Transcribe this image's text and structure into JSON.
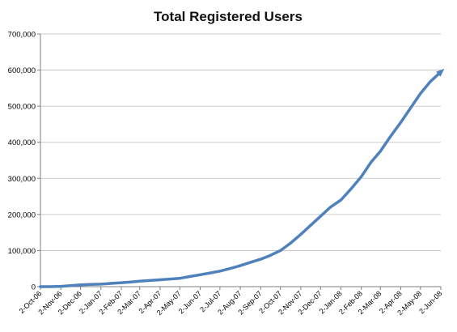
{
  "chart_data": {
    "type": "line",
    "title": "Total Registered Users",
    "xlabel": "",
    "ylabel": "",
    "ylim": [
      0,
      700000
    ],
    "yticks": [
      0,
      100000,
      200000,
      300000,
      400000,
      500000,
      600000,
      700000
    ],
    "ytick_labels": [
      "0",
      "100,000",
      "200,000",
      "300,000",
      "400,000",
      "500,000",
      "600,000",
      "700,000"
    ],
    "grid": true,
    "legend": "none",
    "x_tick_labels": [
      "2-Oct-06",
      "2-Nov-06",
      "2-Dec-06",
      "2-Jan-07",
      "2-Feb-07",
      "2-Mar-07",
      "2-Apr-07",
      "2-May-07",
      "2-Jun-07",
      "2-Jul-07",
      "2-Aug-07",
      "2-Sep-07",
      "2-Oct-07",
      "2-Nov-07",
      "2-Dec-07",
      "2-Jan-08",
      "2-Feb-08",
      "2-Mar-08",
      "2-Apr-08",
      "2-May-08",
      "2-Jun-08"
    ],
    "line_color": "#4F81BD",
    "series": [
      {
        "x": [
          "2-Oct-06",
          "17-Oct-06",
          "2-Nov-06",
          "17-Nov-06",
          "2-Dec-06",
          "17-Dec-06",
          "2-Jan-07",
          "17-Jan-07",
          "2-Feb-07",
          "17-Feb-07",
          "2-Mar-07",
          "17-Mar-07",
          "2-Apr-07",
          "17-Apr-07",
          "2-May-07",
          "17-May-07",
          "2-Jun-07",
          "17-Jun-07",
          "2-Jul-07",
          "17-Jul-07",
          "2-Aug-07",
          "17-Aug-07",
          "2-Sep-07",
          "17-Sep-07",
          "2-Oct-07",
          "17-Oct-07",
          "2-Nov-07",
          "17-Nov-07",
          "2-Dec-07",
          "17-Dec-07",
          "2-Jan-08",
          "17-Jan-08",
          "2-Feb-08",
          "17-Feb-08",
          "2-Mar-08",
          "17-Mar-08",
          "2-Apr-08",
          "17-Apr-08",
          "2-May-08",
          "17-May-08",
          "2-Jun-08"
        ],
        "values": [
          0,
          0,
          1000,
          3000,
          5000,
          6000,
          7000,
          9000,
          11000,
          13000,
          15000,
          17000,
          19000,
          21000,
          23000,
          28000,
          33000,
          38000,
          43000,
          50000,
          58000,
          67000,
          76000,
          87000,
          100000,
          120000,
          145000,
          170000,
          195000,
          220000,
          240000,
          270000,
          305000,
          345000,
          375000,
          415000,
          455000,
          495000,
          535000,
          568000,
          595000
        ]
      }
    ]
  }
}
